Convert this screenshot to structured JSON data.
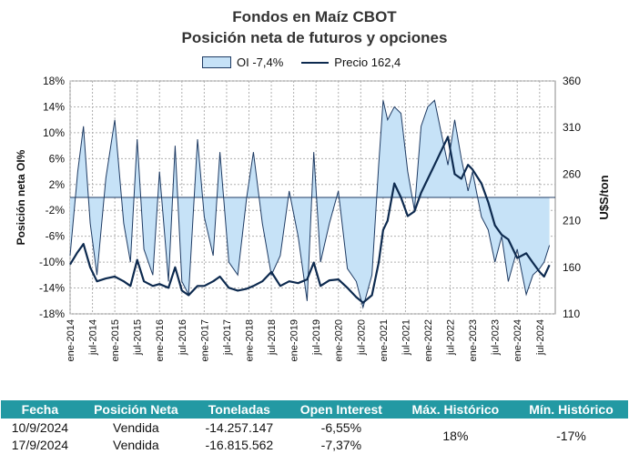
{
  "header": {
    "title": "Fondos en Maíz CBOT",
    "subtitle": "Posición neta de futuros y opciones"
  },
  "legend": {
    "oi_label": "OI -7,4%",
    "price_label": "Precio 162,4"
  },
  "chart_data": {
    "type": "area",
    "ylabel": "Posición neta OI%",
    "y2label": "U$S/ton",
    "ylim": [
      -18,
      18
    ],
    "y2lim": [
      110,
      360
    ],
    "yticks": [
      "18%",
      "14%",
      "10%",
      "6%",
      "2%",
      "-2%",
      "-6%",
      "-10%",
      "-14%",
      "-18%"
    ],
    "y2ticks": [
      "360",
      "310",
      "260",
      "210",
      "160",
      "110"
    ],
    "xticks": [
      "ene-2014",
      "jul-2014",
      "ene-2015",
      "jul-2015",
      "ene-2016",
      "jul-2016",
      "ene-2017",
      "jul-2017",
      "ene-2018",
      "jul-2018",
      "ene-2019",
      "jul-2019",
      "ene-2020",
      "jul-2020",
      "ene-2021",
      "jul-2021",
      "ene-2022",
      "jul-2022",
      "ene-2023",
      "jul-2023",
      "ene-2024",
      "jul-2024"
    ],
    "grid": true,
    "series": [
      {
        "name": "OI -7,4%",
        "axis": "left",
        "x": [
          2014.0,
          2014.17,
          2014.3,
          2014.45,
          2014.6,
          2014.8,
          2015.0,
          2015.2,
          2015.35,
          2015.5,
          2015.65,
          2015.85,
          2016.0,
          2016.2,
          2016.35,
          2016.5,
          2016.65,
          2016.85,
          2017.0,
          2017.2,
          2017.35,
          2017.55,
          2017.75,
          2017.95,
          2018.1,
          2018.3,
          2018.5,
          2018.7,
          2018.9,
          2019.1,
          2019.3,
          2019.45,
          2019.6,
          2019.8,
          2020.0,
          2020.2,
          2020.4,
          2020.55,
          2020.75,
          2020.9,
          2021.0,
          2021.1,
          2021.25,
          2021.4,
          2021.55,
          2021.7,
          2021.85,
          2022.0,
          2022.15,
          2022.3,
          2022.45,
          2022.6,
          2022.75,
          2022.9,
          2023.0,
          2023.2,
          2023.35,
          2023.5,
          2023.65,
          2023.8,
          2024.0,
          2024.2,
          2024.35,
          2024.5,
          2024.6,
          2024.72
        ],
        "values": [
          -9,
          4,
          11,
          -4,
          -12,
          3,
          12,
          -4,
          -10,
          9,
          -8,
          -12,
          4,
          -13,
          8,
          -13,
          -15,
          9,
          -3,
          -9,
          7,
          -10,
          -12,
          0,
          7,
          -4,
          -12,
          -9,
          1,
          -6,
          -16,
          7,
          -10,
          -4,
          1,
          -11,
          -13,
          -17,
          -12,
          5,
          15,
          12,
          14,
          13,
          4,
          -2,
          11,
          14,
          15,
          10,
          5,
          12,
          6,
          1,
          4,
          -3,
          -5,
          -10,
          -6,
          -13,
          -8,
          -15,
          -12,
          -11,
          -10,
          -7.4
        ]
      },
      {
        "name": "Precio 162,4",
        "axis": "right",
        "x": [
          2014.0,
          2014.15,
          2014.3,
          2014.45,
          2014.6,
          2014.8,
          2015.0,
          2015.2,
          2015.35,
          2015.5,
          2015.65,
          2015.85,
          2016.0,
          2016.2,
          2016.35,
          2016.5,
          2016.65,
          2016.85,
          2017.0,
          2017.2,
          2017.35,
          2017.55,
          2017.75,
          2017.95,
          2018.1,
          2018.3,
          2018.5,
          2018.7,
          2018.9,
          2019.1,
          2019.3,
          2019.45,
          2019.6,
          2019.8,
          2020.0,
          2020.2,
          2020.4,
          2020.55,
          2020.75,
          2020.9,
          2021.0,
          2021.1,
          2021.25,
          2021.4,
          2021.55,
          2021.7,
          2021.85,
          2022.0,
          2022.15,
          2022.3,
          2022.45,
          2022.6,
          2022.75,
          2022.9,
          2023.0,
          2023.2,
          2023.35,
          2023.5,
          2023.65,
          2023.8,
          2024.0,
          2024.2,
          2024.35,
          2024.5,
          2024.6,
          2024.72
        ],
        "values": [
          163,
          175,
          185,
          160,
          145,
          148,
          150,
          145,
          140,
          168,
          145,
          140,
          142,
          138,
          160,
          135,
          130,
          140,
          140,
          145,
          150,
          138,
          135,
          137,
          140,
          145,
          155,
          140,
          145,
          143,
          147,
          165,
          140,
          146,
          147,
          138,
          128,
          122,
          130,
          165,
          200,
          210,
          250,
          235,
          215,
          220,
          240,
          255,
          270,
          285,
          300,
          260,
          255,
          270,
          265,
          250,
          230,
          205,
          195,
          190,
          170,
          175,
          165,
          155,
          150,
          162.4
        ]
      }
    ]
  },
  "table": {
    "headers": [
      "Fecha",
      "Posición Neta",
      "Toneladas",
      "Open Interest",
      "Máx. Histórico",
      "Mín. Histórico"
    ],
    "rows": [
      [
        "10/9/2024",
        "Vendida",
        "-14.257.147",
        "-6,55%"
      ],
      [
        "17/9/2024",
        "Vendida",
        "-16.815.562",
        "-7,37%"
      ]
    ],
    "max_historico": "18%",
    "min_historico": "-17%"
  },
  "colors": {
    "area_fill": "#c6e2f7",
    "area_stroke": "#1f3b63",
    "price_line": "#0d2a4f",
    "table_header_bg": "#2399a3",
    "grid": "#b0b0b0"
  }
}
